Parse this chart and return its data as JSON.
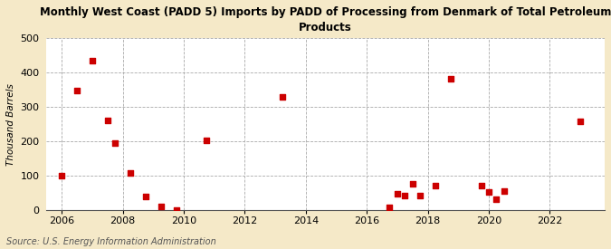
{
  "title": "Monthly West Coast (PADD 5) Imports by PADD of Processing from Denmark of Total Petroleum\nProducts",
  "ylabel": "Thousand Barrels",
  "source": "Source: U.S. Energy Information Administration",
  "background_color": "#f5e9c8",
  "plot_bg_color": "#ffffff",
  "marker_color": "#cc0000",
  "marker_size": 18,
  "xlim": [
    2005.5,
    2023.8
  ],
  "ylim": [
    0,
    500
  ],
  "yticks": [
    0,
    100,
    200,
    300,
    400,
    500
  ],
  "xticks": [
    2006,
    2008,
    2010,
    2012,
    2014,
    2016,
    2018,
    2020,
    2022
  ],
  "x": [
    2006.0,
    2006.5,
    2007.0,
    2007.5,
    2007.75,
    2008.25,
    2008.75,
    2009.25,
    2009.75,
    2010.75,
    2013.25,
    2016.75,
    2017.0,
    2017.25,
    2017.5,
    2017.75,
    2018.25,
    2018.75,
    2019.75,
    2020.0,
    2020.25,
    2020.5,
    2023.0
  ],
  "y": [
    100,
    348,
    435,
    262,
    195,
    107,
    40,
    10,
    0,
    203,
    330,
    8,
    47,
    41,
    75,
    42,
    70,
    383,
    70,
    53,
    32,
    55,
    257
  ]
}
